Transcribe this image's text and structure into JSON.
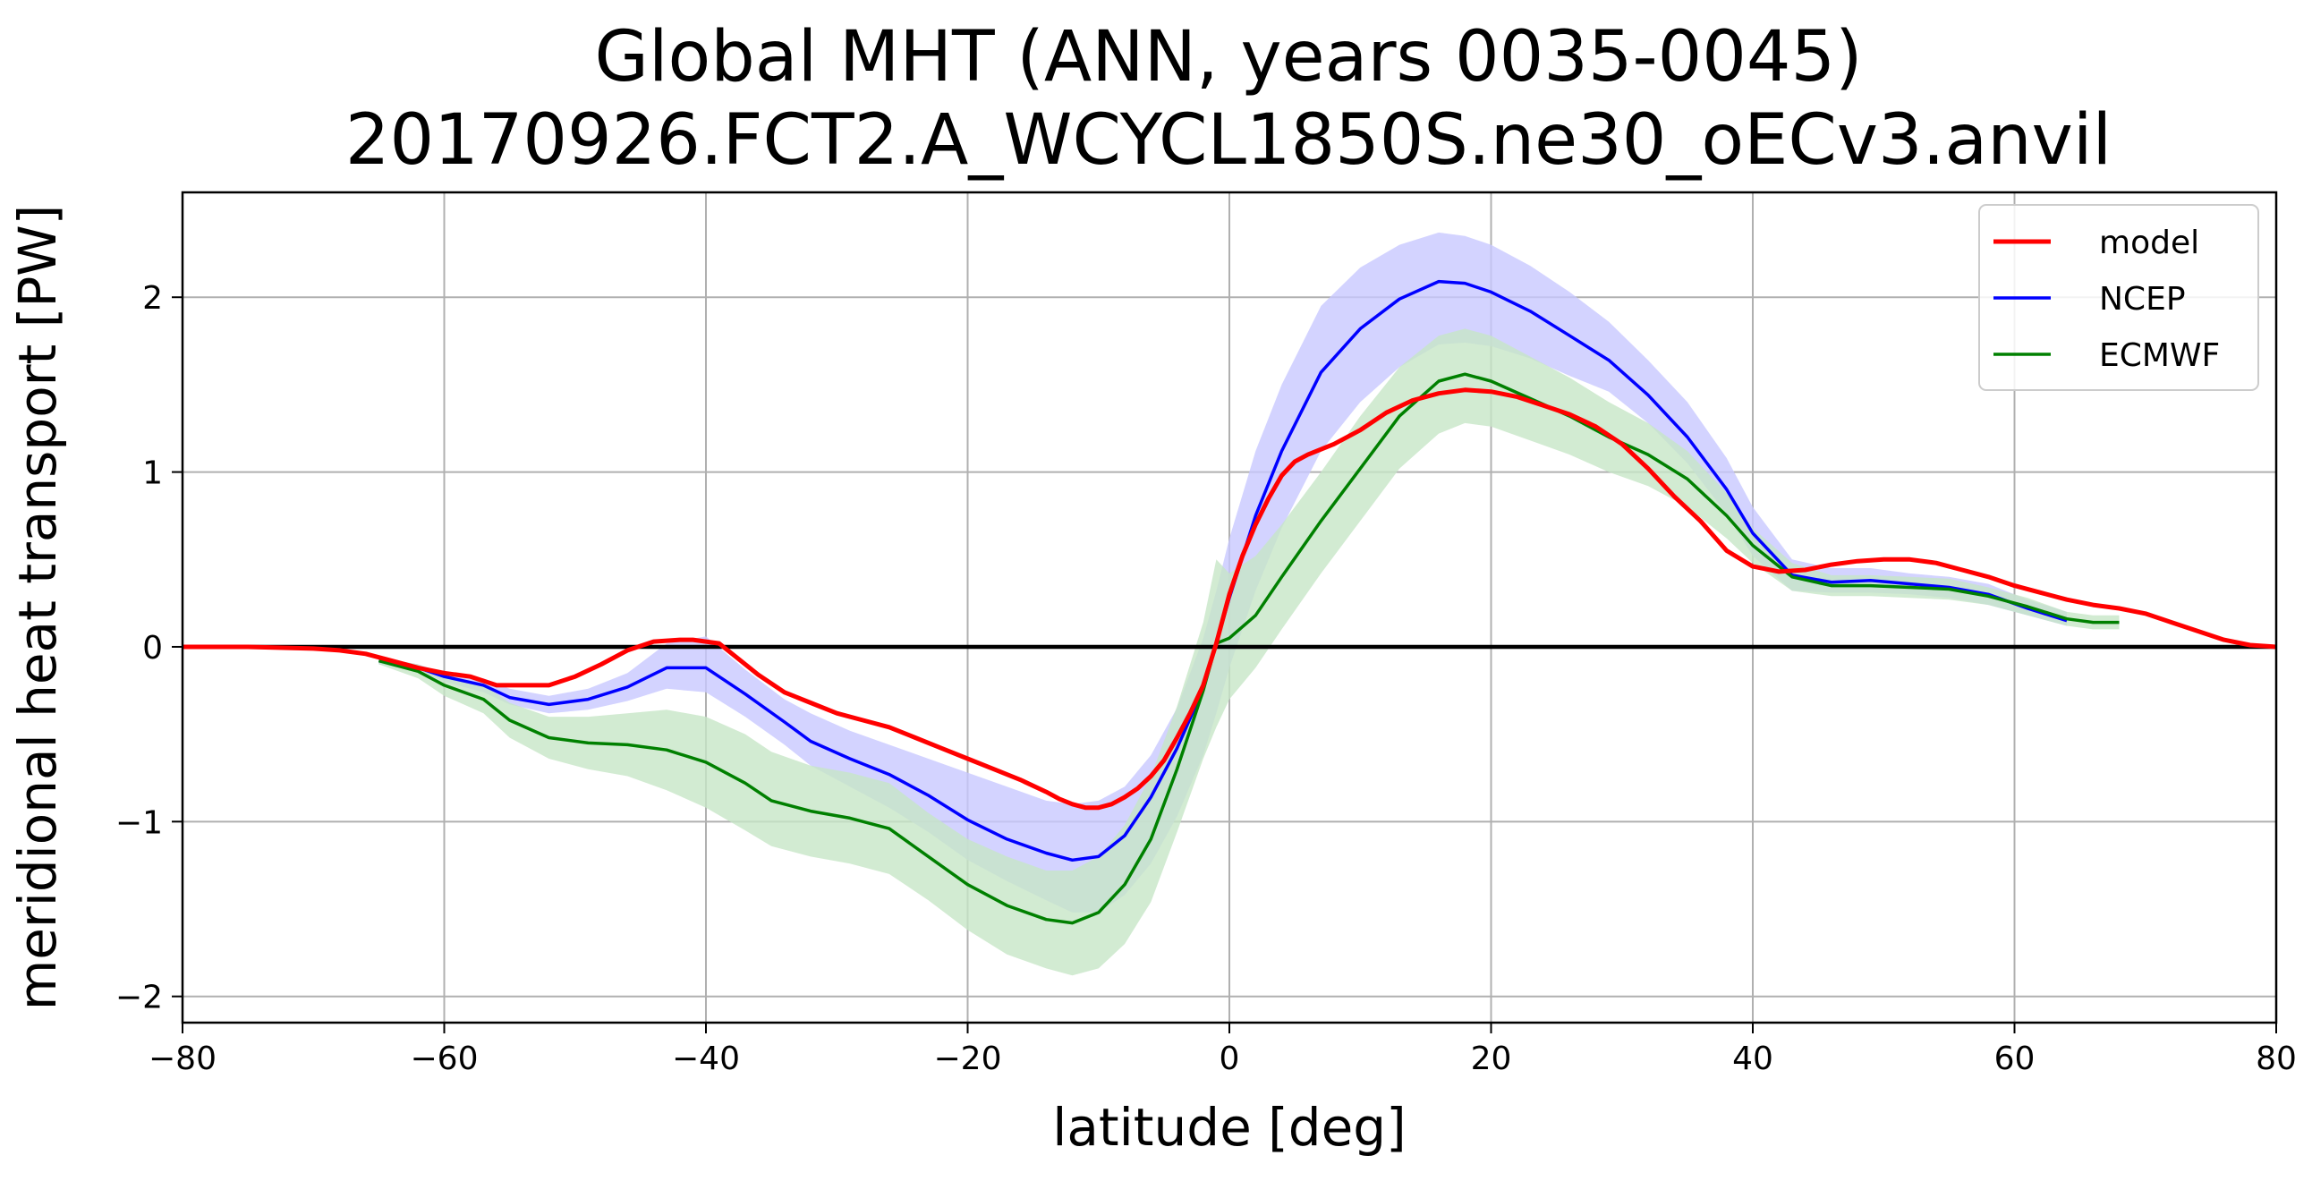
{
  "chart_data": {
    "type": "line",
    "title": "Global MHT (ANN, years 0035-0045)",
    "subtitle": "20170926.FCT2.A_WCYCL1850S.ne30_oECv3.anvil",
    "xlabel": "latitude [deg]",
    "ylabel": "meridional heat transport [PW]",
    "xlim": [
      -80,
      80
    ],
    "ylim": [
      -2.15,
      2.6
    ],
    "xticks": [
      -80,
      -60,
      -40,
      -20,
      0,
      20,
      40,
      60,
      80
    ],
    "xtick_labels": [
      "−80",
      "−60",
      "−40",
      "−20",
      "0",
      "20",
      "40",
      "60",
      "80"
    ],
    "yticks": [
      -2,
      -1,
      0,
      1,
      2
    ],
    "ytick_labels": [
      "−2",
      "−1",
      "0",
      "1",
      "2"
    ],
    "grid": true,
    "legend_position": "top-right",
    "zero_line": true,
    "series": [
      {
        "name": "model",
        "color": "#ff0000",
        "x": [
          -80,
          -75,
          -70,
          -68,
          -66,
          -64,
          -62,
          -60,
          -58,
          -56,
          -54,
          -52,
          -50,
          -48,
          -46,
          -44,
          -42,
          -41,
          -40,
          -39,
          -38,
          -36,
          -34,
          -32,
          -30,
          -28,
          -26,
          -24,
          -22,
          -20,
          -18,
          -16,
          -14,
          -13,
          -12,
          -11,
          -10,
          -9,
          -8,
          -7,
          -6,
          -5,
          -4,
          -3,
          -2,
          -1,
          0,
          1,
          2,
          3,
          4,
          5,
          6,
          8,
          10,
          12,
          14,
          16,
          18,
          20,
          22,
          24,
          26,
          28,
          30,
          32,
          34,
          36,
          38,
          40,
          42,
          44,
          46,
          48,
          50,
          52,
          54,
          56,
          58,
          60,
          62,
          64,
          66,
          68,
          70,
          72,
          74,
          76,
          78,
          80
        ],
        "values": [
          0,
          0,
          -0.01,
          -0.02,
          -0.04,
          -0.08,
          -0.12,
          -0.15,
          -0.17,
          -0.22,
          -0.22,
          -0.22,
          -0.17,
          -0.1,
          -0.02,
          0.03,
          0.04,
          0.04,
          0.03,
          0.02,
          -0.04,
          -0.16,
          -0.26,
          -0.32,
          -0.38,
          -0.42,
          -0.46,
          -0.52,
          -0.58,
          -0.64,
          -0.7,
          -0.76,
          -0.83,
          -0.87,
          -0.9,
          -0.92,
          -0.92,
          -0.9,
          -0.86,
          -0.81,
          -0.74,
          -0.65,
          -0.52,
          -0.38,
          -0.22,
          0.02,
          0.3,
          0.52,
          0.7,
          0.85,
          0.98,
          1.06,
          1.1,
          1.16,
          1.24,
          1.34,
          1.41,
          1.45,
          1.47,
          1.46,
          1.43,
          1.38,
          1.33,
          1.26,
          1.16,
          1.02,
          0.86,
          0.72,
          0.55,
          0.46,
          0.43,
          0.44,
          0.47,
          0.49,
          0.5,
          0.5,
          0.48,
          0.44,
          0.4,
          0.35,
          0.31,
          0.27,
          0.24,
          0.22,
          0.19,
          0.14,
          0.09,
          0.04,
          0.01,
          0
        ]
      },
      {
        "name": "NCEP",
        "color": "#0000ff",
        "band_color": "#c8c8ff",
        "x": [
          -65,
          -62,
          -60,
          -57,
          -55,
          -52,
          -49,
          -46,
          -43,
          -40,
          -37,
          -34,
          -32,
          -29,
          -26,
          -23,
          -20,
          -17,
          -14,
          -12,
          -10,
          -8,
          -6,
          -4,
          -2,
          -1,
          0,
          2,
          4,
          7,
          10,
          13,
          16,
          18,
          20,
          23,
          26,
          29,
          32,
          35,
          38,
          40,
          43,
          46,
          49,
          52,
          55,
          58,
          61,
          64
        ],
        "values": [
          -0.08,
          -0.12,
          -0.17,
          -0.22,
          -0.29,
          -0.33,
          -0.3,
          -0.23,
          -0.12,
          -0.12,
          -0.27,
          -0.43,
          -0.54,
          -0.64,
          -0.73,
          -0.85,
          -0.99,
          -1.1,
          -1.18,
          -1.22,
          -1.2,
          -1.08,
          -0.86,
          -0.58,
          -0.24,
          0.02,
          0.28,
          0.75,
          1.12,
          1.57,
          1.82,
          1.99,
          2.09,
          2.08,
          2.03,
          1.92,
          1.78,
          1.64,
          1.44,
          1.2,
          0.9,
          0.65,
          0.41,
          0.37,
          0.38,
          0.36,
          0.34,
          0.3,
          0.22,
          0.15
        ],
        "band_lower": [
          -0.1,
          -0.14,
          -0.2,
          -0.26,
          -0.33,
          -0.38,
          -0.36,
          -0.31,
          -0.24,
          -0.26,
          -0.4,
          -0.56,
          -0.68,
          -0.8,
          -0.92,
          -1.06,
          -1.22,
          -1.34,
          -1.45,
          -1.52,
          -1.52,
          -1.42,
          -1.24,
          -0.97,
          -0.62,
          -0.38,
          -0.12,
          0.32,
          0.68,
          1.12,
          1.4,
          1.6,
          1.73,
          1.74,
          1.72,
          1.65,
          1.55,
          1.46,
          1.28,
          1.05,
          0.76,
          0.52,
          0.32,
          0.31,
          0.31,
          0.3,
          0.28,
          0.24,
          0.18,
          0.12
        ],
        "band_upper": [
          -0.06,
          -0.1,
          -0.15,
          -0.18,
          -0.24,
          -0.28,
          -0.24,
          -0.15,
          0.02,
          0.06,
          -0.13,
          -0.3,
          -0.38,
          -0.48,
          -0.56,
          -0.64,
          -0.72,
          -0.8,
          -0.88,
          -0.9,
          -0.88,
          -0.8,
          -0.62,
          -0.35,
          0.05,
          0.32,
          0.62,
          1.12,
          1.5,
          1.95,
          2.17,
          2.3,
          2.37,
          2.35,
          2.3,
          2.18,
          2.03,
          1.86,
          1.64,
          1.4,
          1.08,
          0.8,
          0.5,
          0.45,
          0.45,
          0.42,
          0.4,
          0.36,
          0.27,
          0.2
        ]
      },
      {
        "name": "ECMWF",
        "color": "#008000",
        "band_color": "#c7e6c7",
        "x": [
          -65,
          -62,
          -60,
          -57,
          -55,
          -52,
          -49,
          -46,
          -43,
          -40,
          -37,
          -35,
          -32,
          -29,
          -26,
          -23,
          -20,
          -17,
          -14,
          -12,
          -10,
          -8,
          -6,
          -4,
          -2,
          -1,
          0,
          2,
          4,
          7,
          10,
          13,
          16,
          18,
          20,
          23,
          26,
          29,
          32,
          35,
          38,
          40,
          43,
          46,
          49,
          52,
          55,
          58,
          61,
          64,
          66,
          68
        ],
        "values": [
          -0.08,
          -0.14,
          -0.22,
          -0.3,
          -0.42,
          -0.52,
          -0.55,
          -0.56,
          -0.59,
          -0.66,
          -0.78,
          -0.88,
          -0.94,
          -0.98,
          -1.04,
          -1.2,
          -1.36,
          -1.48,
          -1.56,
          -1.58,
          -1.52,
          -1.36,
          -1.1,
          -0.7,
          -0.25,
          0.02,
          0.05,
          0.18,
          0.4,
          0.72,
          1.02,
          1.32,
          1.52,
          1.56,
          1.52,
          1.42,
          1.32,
          1.2,
          1.1,
          0.96,
          0.75,
          0.58,
          0.4,
          0.35,
          0.35,
          0.34,
          0.33,
          0.29,
          0.23,
          0.16,
          0.14,
          0.14
        ],
        "band_lower": [
          -0.1,
          -0.18,
          -0.28,
          -0.38,
          -0.52,
          -0.64,
          -0.7,
          -0.74,
          -0.82,
          -0.92,
          -1.05,
          -1.14,
          -1.2,
          -1.24,
          -1.3,
          -1.45,
          -1.62,
          -1.76,
          -1.84,
          -1.88,
          -1.84,
          -1.7,
          -1.46,
          -1.06,
          -0.64,
          -0.46,
          -0.3,
          -0.12,
          0.1,
          0.42,
          0.72,
          1.02,
          1.22,
          1.28,
          1.26,
          1.18,
          1.1,
          1.0,
          0.92,
          0.8,
          0.62,
          0.48,
          0.32,
          0.29,
          0.29,
          0.28,
          0.27,
          0.24,
          0.18,
          0.12,
          0.1,
          0.1
        ],
        "band_upper": [
          -0.06,
          -0.1,
          -0.16,
          -0.22,
          -0.32,
          -0.4,
          -0.4,
          -0.38,
          -0.36,
          -0.4,
          -0.5,
          -0.6,
          -0.68,
          -0.72,
          -0.78,
          -0.95,
          -1.1,
          -1.2,
          -1.28,
          -1.28,
          -1.2,
          -1.02,
          -0.74,
          -0.34,
          0.14,
          0.5,
          0.42,
          0.52,
          0.7,
          1.0,
          1.32,
          1.6,
          1.78,
          1.82,
          1.78,
          1.66,
          1.54,
          1.4,
          1.28,
          1.12,
          0.88,
          0.68,
          0.48,
          0.41,
          0.41,
          0.4,
          0.39,
          0.34,
          0.28,
          0.2,
          0.18,
          0.18
        ]
      }
    ]
  }
}
